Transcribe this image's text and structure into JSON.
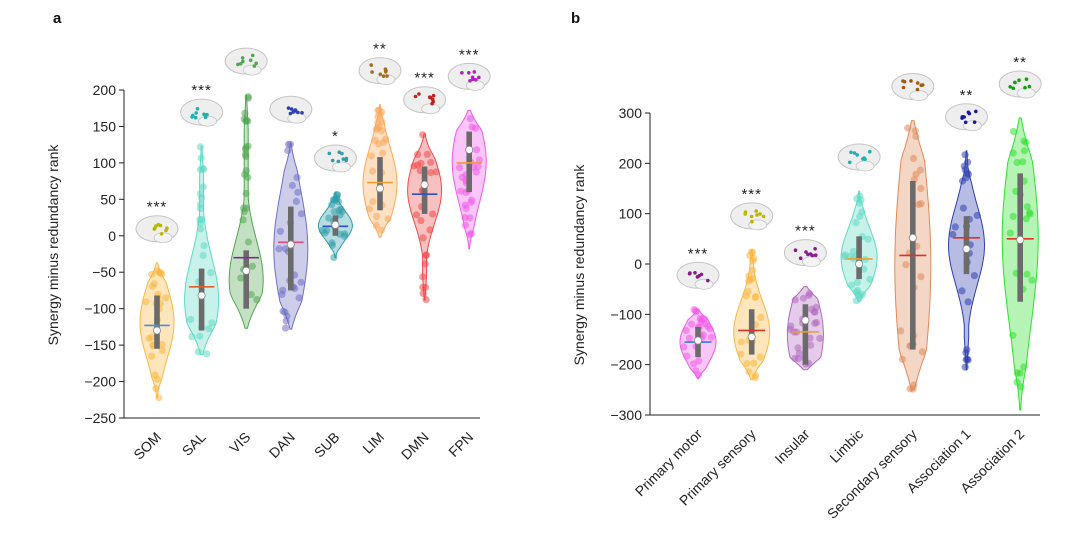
{
  "chart_data": [
    {
      "type": "violin",
      "panel_label": "a",
      "ylabel": "Synergy minus redundancy rank",
      "ylim": [
        -250,
        200
      ],
      "yticks": [
        -250,
        -200,
        -150,
        -100,
        -50,
        0,
        50,
        100,
        150,
        200
      ],
      "categories": [
        {
          "label": "SOM",
          "color": "#f9b73f",
          "min": -222,
          "max": -37,
          "q1": -155,
          "median": -130,
          "q3": -82,
          "mean": -123,
          "significance": "***",
          "brain_color": "#b8b800",
          "mean_color": "#4a90d9"
        },
        {
          "label": "SAL",
          "color": "#5fd9c2",
          "min": -163,
          "max": 123,
          "q1": -130,
          "median": -82,
          "q3": -45,
          "mean": -70,
          "significance": "***",
          "brain_color": "#20b0b0",
          "mean_color": "#e0602a"
        },
        {
          "label": "VIS",
          "color": "#52a552",
          "min": -127,
          "max": 193,
          "q1": -100,
          "median": -48,
          "q3": -20,
          "mean": -30,
          "significance": "",
          "brain_color": "#4fa84f",
          "mean_color": "#7a2f8f"
        },
        {
          "label": "DAN",
          "color": "#6f6fc4",
          "min": -128,
          "max": 127,
          "q1": -75,
          "median": -12,
          "q3": 40,
          "mean": -9,
          "significance": "",
          "brain_color": "#2f3fb0",
          "mean_color": "#e04a7a"
        },
        {
          "label": "SUB",
          "color": "#2f9ea8",
          "min": -30,
          "max": 60,
          "q1": 0,
          "median": 15,
          "q3": 28,
          "mean": 13,
          "significance": "*",
          "brain_color": "#2f9ea8",
          "mean_color": "#3050c0"
        },
        {
          "label": "LIM",
          "color": "#f9a85a",
          "min": -2,
          "max": 180,
          "q1": 35,
          "median": 65,
          "q3": 108,
          "mean": 73,
          "significance": "**",
          "brain_color": "#a07020",
          "mean_color": "#e8a030"
        },
        {
          "label": "DMN",
          "color": "#ef4a4a",
          "min": -88,
          "max": 140,
          "q1": 30,
          "median": 70,
          "q3": 95,
          "mean": 57,
          "significance": "***",
          "brain_color": "#c02020",
          "mean_color": "#3050c0"
        },
        {
          "label": "FPN",
          "color": "#f05ae8",
          "min": -18,
          "max": 172,
          "q1": 60,
          "median": 118,
          "q3": 143,
          "mean": 100,
          "significance": "***",
          "brain_color": "#b020c0",
          "mean_color": "#e8a030"
        }
      ]
    },
    {
      "type": "violin",
      "panel_label": "b",
      "ylabel": "Synergy minus redundancy rank",
      "ylim": [
        -300,
        300
      ],
      "yticks": [
        -300,
        -200,
        -100,
        0,
        100,
        200,
        300
      ],
      "categories": [
        {
          "label": "Primary motor",
          "color": "#f05ae8",
          "min": -228,
          "max": -90,
          "q1": -185,
          "median": -152,
          "q3": -125,
          "mean": -155,
          "significance": "***",
          "brain_color": "#8a1a8a",
          "mean_color": "#3a7ad9"
        },
        {
          "label": "Primary sensory",
          "color": "#f9b73f",
          "min": -230,
          "max": 28,
          "q1": -180,
          "median": -145,
          "q3": -90,
          "mean": -132,
          "significance": "***",
          "brain_color": "#b8b800",
          "mean_color": "#e0302a"
        },
        {
          "label": "Insular",
          "color": "#b06abf",
          "min": -210,
          "max": -45,
          "q1": -200,
          "median": -112,
          "q3": -80,
          "mean": -135,
          "significance": "***",
          "brain_color": "#8a1a8a",
          "mean_color": "#e8a030"
        },
        {
          "label": "Limbic",
          "color": "#5fd9c2",
          "min": -75,
          "max": 145,
          "q1": -30,
          "median": 0,
          "q3": 55,
          "mean": 10,
          "significance": "",
          "brain_color": "#20b0b0",
          "mean_color": "#e8a030"
        },
        {
          "label": "Secondary sensory",
          "color": "#e08a5a",
          "min": -250,
          "max": 285,
          "q1": -170,
          "median": 52,
          "q3": 165,
          "mean": 17,
          "significance": "",
          "brain_color": "#a05a10",
          "mean_color": "#e0302a"
        },
        {
          "label": "Association 1",
          "color": "#2f3fb0",
          "min": -210,
          "max": 225,
          "q1": -20,
          "median": 30,
          "q3": 95,
          "mean": 52,
          "significance": "**",
          "brain_color": "#1a1aa0",
          "mean_color": "#e0302a"
        },
        {
          "label": "Association 2",
          "color": "#2ee02e",
          "min": -290,
          "max": 290,
          "q1": -75,
          "median": 48,
          "q3": 180,
          "mean": 50,
          "significance": "**",
          "brain_color": "#10a010",
          "mean_color": "#e0302a"
        }
      ]
    }
  ]
}
